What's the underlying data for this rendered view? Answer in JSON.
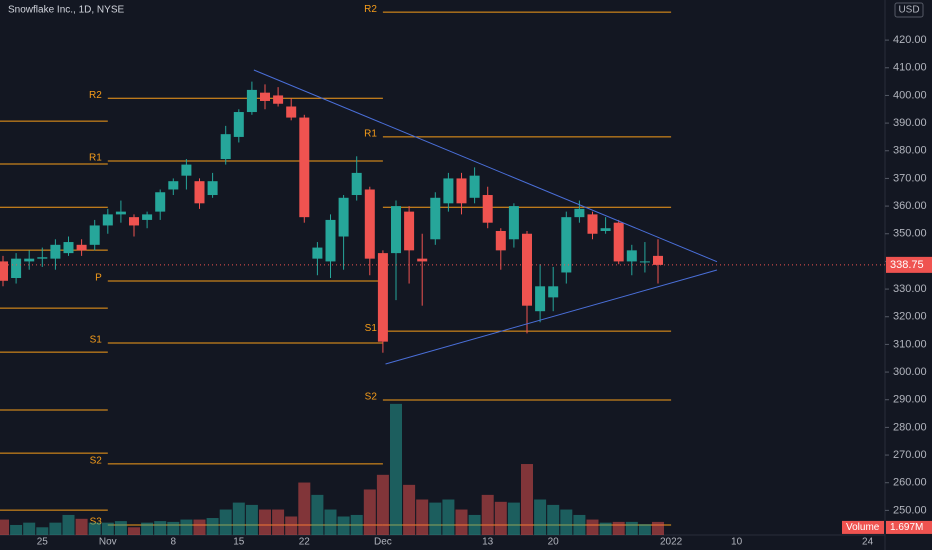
{
  "chart_data": {
    "type": "candlestick",
    "legend_text": "Snowflake Inc., 1D, NYSE",
    "currency": "USD",
    "volume_title": "Volume",
    "volume_label": "1.697M",
    "up_color": "#26a69a",
    "down_color": "#ef5350",
    "pivot_color": "#f59c1a",
    "trend_color": "#4a6fd9",
    "categories": [
      null,
      null,
      null,
      "25",
      null,
      null,
      null,
      null,
      "Nov",
      null,
      null,
      null,
      null,
      "8",
      null,
      null,
      null,
      null,
      "15",
      null,
      null,
      null,
      null,
      "22",
      null,
      null,
      null,
      null,
      null,
      "Dec",
      null,
      null,
      null,
      null,
      null,
      null,
      null,
      "13",
      null,
      null,
      null,
      null,
      "20",
      null,
      null,
      null,
      null,
      null,
      null,
      null,
      null,
      "2022",
      null,
      null,
      null,
      null,
      "10",
      null,
      null,
      null,
      null,
      null,
      null,
      null,
      null,
      null,
      "24"
    ],
    "open": [
      340,
      334,
      340,
      341,
      341,
      343,
      346,
      346,
      353,
      357,
      356,
      355,
      358,
      366,
      371,
      369,
      364,
      377,
      385,
      394,
      401,
      400,
      396,
      392,
      341,
      340,
      349,
      364,
      366,
      343,
      343,
      358,
      341,
      348,
      361,
      370,
      363,
      364,
      351,
      348,
      350,
      322,
      327,
      336,
      356,
      357,
      351,
      354,
      340,
      340,
      342,
      null,
      null,
      null,
      null,
      null,
      null,
      null,
      null,
      null,
      null,
      null,
      null,
      null,
      null,
      null,
      null
    ],
    "high": [
      342,
      343,
      344,
      345,
      348,
      349,
      348,
      355,
      359,
      362,
      357,
      358,
      366,
      370,
      377,
      370,
      372,
      389,
      395,
      405,
      404,
      403,
      399,
      393,
      347,
      357,
      364,
      378,
      367,
      344,
      362,
      360,
      350,
      365,
      372,
      372,
      374,
      367,
      352,
      361,
      351,
      339,
      338,
      358,
      362,
      358,
      356,
      355,
      346,
      347,
      348,
      null,
      null,
      null,
      null,
      null,
      null,
      null,
      null,
      null,
      null,
      null,
      null,
      null,
      null,
      null,
      null
    ],
    "low": [
      331,
      332,
      337,
      338,
      337,
      342,
      342,
      344,
      350,
      354,
      349,
      352,
      355,
      364,
      366,
      359,
      363,
      375,
      383,
      393,
      395,
      396,
      391,
      354,
      335,
      334,
      337,
      362,
      335,
      307,
      326,
      332,
      324,
      346,
      358,
      357,
      361,
      352,
      337,
      345,
      314,
      318,
      322,
      332,
      354,
      348,
      350,
      339,
      335,
      336,
      332,
      null,
      null,
      null,
      null,
      null,
      null,
      null,
      null,
      null,
      null,
      null,
      null,
      null,
      null,
      null,
      null
    ],
    "close": [
      333,
      341,
      341,
      341.5,
      346,
      347,
      344,
      353,
      357,
      358,
      353,
      357,
      365,
      369,
      375,
      361,
      369,
      386,
      394,
      402,
      398,
      397,
      392,
      356,
      345,
      355,
      363,
      372,
      341,
      311,
      360,
      344,
      340,
      363,
      370,
      361,
      371,
      354,
      344,
      360,
      324,
      331,
      331,
      356,
      359,
      350,
      352,
      340,
      344,
      340,
      338.75,
      null,
      null,
      null,
      null,
      null,
      null,
      null,
      null,
      null,
      null,
      null,
      null,
      null,
      null,
      null,
      null
    ],
    "volume": [
      2000000,
      1300000,
      1600000,
      1000000,
      1600000,
      2600000,
      2100000,
      1600000,
      1600000,
      1800000,
      1000000,
      1600000,
      1800000,
      1700000,
      2000000,
      2000000,
      2200000,
      3300000,
      4200000,
      3900000,
      3300000,
      3300000,
      2400000,
      6800000,
      5200000,
      3300000,
      2400000,
      2600000,
      5900000,
      7800000,
      17000000,
      6500000,
      4600000,
      4200000,
      4600000,
      3300000,
      2600000,
      5200000,
      4300000,
      4200000,
      9200000,
      4600000,
      3900000,
      3300000,
      2600000,
      2000000,
      1600000,
      1700000,
      1700000,
      1400000,
      1697000,
      null,
      null,
      null,
      null,
      null,
      null,
      null,
      null,
      null,
      null,
      null,
      null,
      null,
      null,
      null,
      null
    ],
    "vlim": [
      0,
      17500000
    ],
    "ylim": [
      241.1,
      434.5
    ],
    "yticks": [
      {
        "value": 250,
        "label": "250.00"
      },
      {
        "value": 260,
        "label": "260.00"
      },
      {
        "value": 270,
        "label": "270.00"
      },
      {
        "value": 280,
        "label": "280.00"
      },
      {
        "value": 290,
        "label": "290.00"
      },
      {
        "value": 300,
        "label": "300.00"
      },
      {
        "value": 310,
        "label": "310.00"
      },
      {
        "value": 320,
        "label": "320.00"
      },
      {
        "value": 330,
        "label": "330.00"
      },
      {
        "value": 340,
        "label": "340.00"
      },
      {
        "value": 350,
        "label": "350.00"
      },
      {
        "value": 360,
        "label": "360.00"
      },
      {
        "value": 370,
        "label": "370.00"
      },
      {
        "value": 380,
        "label": "380.00"
      },
      {
        "value": 390,
        "label": "390.00"
      },
      {
        "value": 400,
        "label": "400.00"
      },
      {
        "value": 410,
        "label": "410.00"
      },
      {
        "value": 420,
        "label": "420.00"
      }
    ],
    "grid": false,
    "pivots": [
      {
        "levels": [
          {
            "value": 390.7
          },
          {
            "value": 375.2
          },
          {
            "value": 359.6
          },
          {
            "value": 344.1
          },
          {
            "value": 323.1
          },
          {
            "value": 307.2
          },
          {
            "value": 286.3
          },
          {
            "value": 270.7
          },
          {
            "value": 250.1
          }
        ]
      },
      {
        "levels": [
          {
            "name": "R2",
            "value": 399.0
          },
          {
            "name": "R1",
            "value": 376.3
          },
          {
            "name": "P",
            "value": 332.9
          },
          {
            "name": "S1",
            "value": 310.5
          },
          {
            "name": "S2",
            "value": 266.8
          },
          {
            "name": "S3",
            "value": 244.7
          }
        ]
      },
      {
        "levels": [
          {
            "name": "R2",
            "value": 430.1
          },
          {
            "name": "R1",
            "value": 385.0
          },
          {
            "value": 359.6
          },
          {
            "name": "S1",
            "value": 314.8
          },
          {
            "name": "S2",
            "value": 289.9
          },
          {
            "value": 244.7
          }
        ]
      }
    ],
    "trendlines": [
      {
        "x": [
          19.15,
          54.5
        ],
        "y": [
          409.2,
          339.9
        ]
      },
      {
        "x": [
          29.2,
          54.5
        ],
        "y": [
          302.9,
          336.9
        ]
      }
    ]
  }
}
